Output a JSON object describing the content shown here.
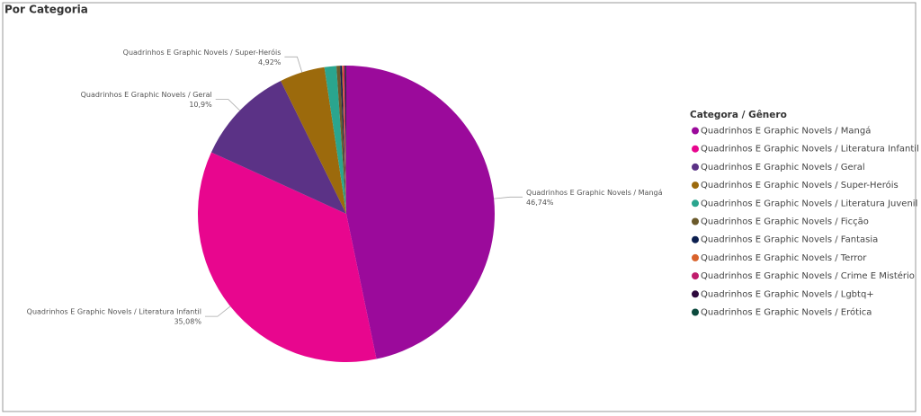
{
  "chart_data": {
    "type": "pie",
    "title": "Por Categoria",
    "legend_title": "Categora / Gênero",
    "legend_position": "right",
    "categories": [
      "Quadrinhos E Graphic Novels / Mangá",
      "Quadrinhos E Graphic Novels / Literatura Infantil",
      "Quadrinhos E Graphic Novels / Geral",
      "Quadrinhos E Graphic Novels / Super-Heróis",
      "Quadrinhos E Graphic Novels / Literatura Juvenil",
      "Quadrinhos E Graphic Novels / Ficção",
      "Quadrinhos E Graphic Novels / Fantasia",
      "Quadrinhos E Graphic Novels / Terror",
      "Quadrinhos E Graphic Novels / Crime E Mistério",
      "Quadrinhos E Graphic Novels / Lgbtq+",
      "Quadrinhos E Graphic Novels / Erótica"
    ],
    "values": [
      46.74,
      35.08,
      10.9,
      4.92,
      1.3,
      0.4,
      0.2,
      0.15,
      0.15,
      0.1,
      0.06
    ],
    "value_labels": [
      "46,74%",
      "35,08%",
      "10,9%",
      "4,92%",
      null,
      null,
      null,
      null,
      null,
      null,
      null
    ],
    "colors": [
      "#9b0a9b",
      "#e8068e",
      "#5b3286",
      "#9c6a0c",
      "#2aa58e",
      "#6b5a2b",
      "#0c1f4f",
      "#d9622b",
      "#c01d6c",
      "#2e0a3d",
      "#0c4a3d"
    ]
  }
}
